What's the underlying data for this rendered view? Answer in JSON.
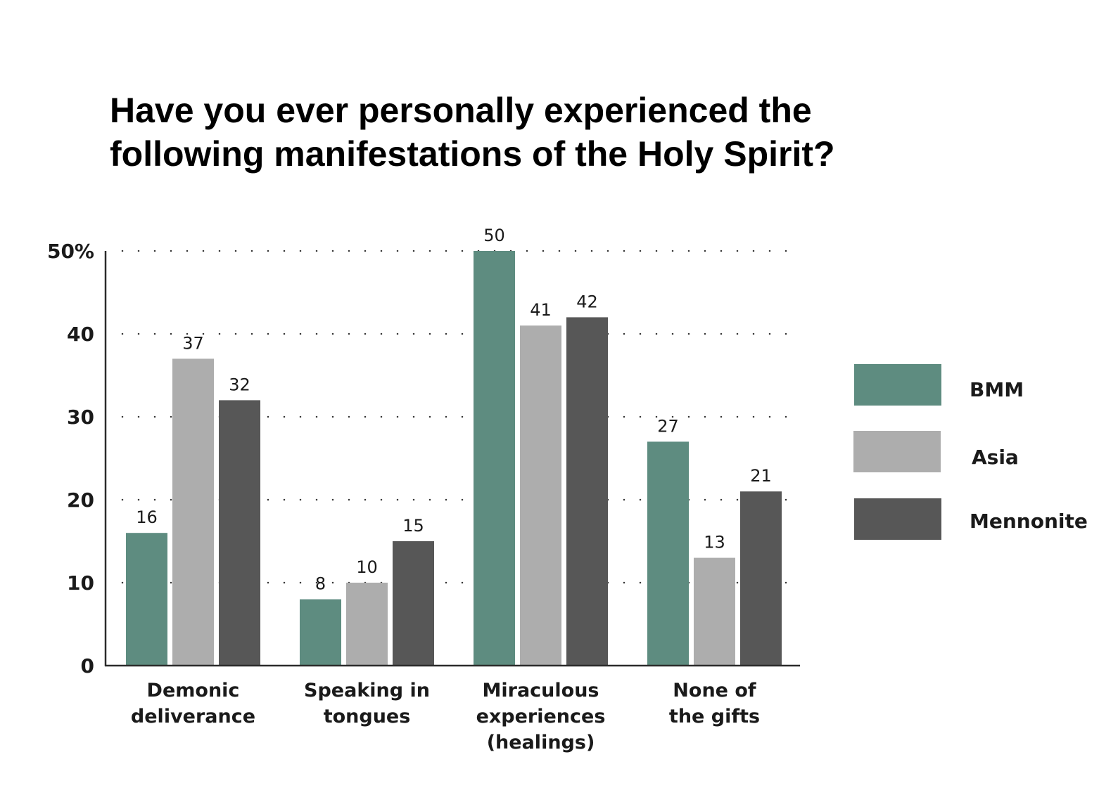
{
  "chart_data": {
    "type": "bar",
    "title_lines": [
      "Have you ever personally experienced the",
      "following manifestations of the Holy Spirit?"
    ],
    "categories": [
      [
        "Demonic",
        "deliverance"
      ],
      [
        "Speaking in",
        "tongues"
      ],
      [
        "Miraculous",
        "experiences",
        "(healings)"
      ],
      [
        "None of",
        "the gifts"
      ]
    ],
    "series": [
      {
        "name": "BMM",
        "color": "#5e8c80",
        "values": [
          16,
          8,
          50,
          27
        ]
      },
      {
        "name": "Asia",
        "color": "#adadad",
        "values": [
          37,
          10,
          41,
          13
        ]
      },
      {
        "name": "Mennonite",
        "color": "#575757",
        "values": [
          32,
          15,
          42,
          21
        ]
      }
    ],
    "ylim": [
      0,
      50
    ],
    "yticks": [
      {
        "value": 0,
        "label": "0"
      },
      {
        "value": 10,
        "label": "10"
      },
      {
        "value": 20,
        "label": "20"
      },
      {
        "value": 30,
        "label": "30"
      },
      {
        "value": 40,
        "label": "40"
      },
      {
        "value": 50,
        "label": "50%"
      }
    ],
    "grid": "dotted-horizontal",
    "legend_position": "right",
    "xlabel": "",
    "ylabel": ""
  }
}
